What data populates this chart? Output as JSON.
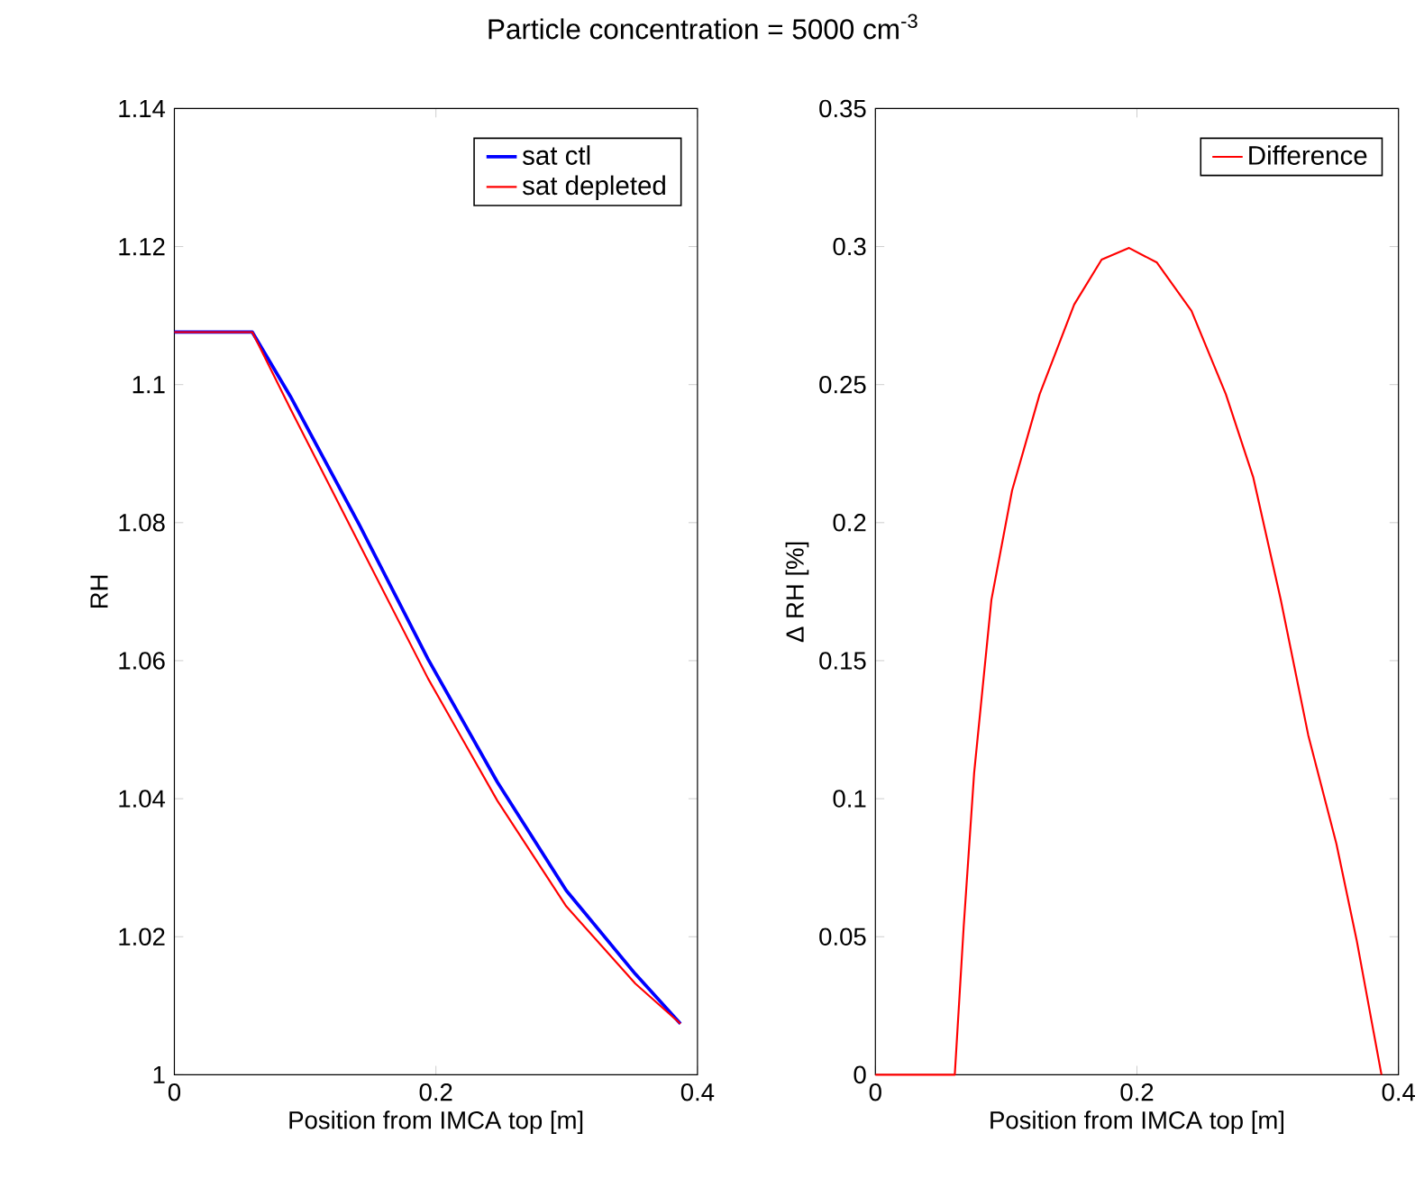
{
  "chart_data": [
    {
      "type": "line",
      "title": "Particle concentration = 5000 cm$^{-3}$",
      "xlabel": "Position from IMCA top [m]",
      "ylabel": "RH",
      "xlim": [
        0,
        0.4
      ],
      "ylim": [
        1,
        1.14
      ],
      "xticks": [
        0,
        0.2,
        0.4
      ],
      "yticks": [
        1,
        1.02,
        1.04,
        1.06,
        1.08,
        1.1,
        1.12,
        1.14
      ],
      "grid": false,
      "legend": "top right",
      "marker": "none",
      "line_style": "solid",
      "series": [
        {
          "name": "sat ctl",
          "color": "#0000ff",
          "x": [
            0,
            0.0596,
            0.0887,
            0.1414,
            0.194,
            0.247,
            0.2997,
            0.3525,
            0.387
          ],
          "values": [
            1.1076,
            1.1076,
            1.0983,
            1.0797,
            1.0602,
            1.0424,
            1.0267,
            1.0146,
            1.0074
          ]
        },
        {
          "name": "sat depleted",
          "color": "#ff0000",
          "x": [
            0,
            0.0596,
            0.0887,
            0.1414,
            0.194,
            0.247,
            0.2997,
            0.3525,
            0.387
          ],
          "values": [
            1.1076,
            1.1076,
            1.0965,
            1.0769,
            1.0574,
            1.0397,
            1.0244,
            1.0132,
            1.0074
          ]
        }
      ]
    },
    {
      "type": "line",
      "xlabel": "Position from IMCA top [m]",
      "ylabel": "Δ RH [%]",
      "xlim": [
        0,
        0.4
      ],
      "ylim": [
        0,
        0.35
      ],
      "xticks": [
        0,
        0.2,
        0.4
      ],
      "yticks": [
        0,
        0.05,
        0.1,
        0.15,
        0.2,
        0.25,
        0.3,
        0.35
      ],
      "grid": false,
      "legend": "top right",
      "marker": "none",
      "line_style": "solid",
      "series": [
        {
          "name": "Difference",
          "color": "#ff0000",
          "x": [
            0,
            0.0607,
            0.0675,
            0.0755,
            0.0887,
            0.1045,
            0.1256,
            0.152,
            0.173,
            0.194,
            0.2153,
            0.2417,
            0.268,
            0.289,
            0.31,
            0.331,
            0.3525,
            0.368,
            0.387
          ],
          "values": [
            0,
            0,
            0.0535,
            0.1093,
            0.172,
            0.2116,
            0.2465,
            0.279,
            0.2953,
            0.2995,
            0.2942,
            0.2767,
            0.2465,
            0.2163,
            0.172,
            0.123,
            0.0837,
            0.0488,
            0
          ]
        }
      ]
    }
  ]
}
